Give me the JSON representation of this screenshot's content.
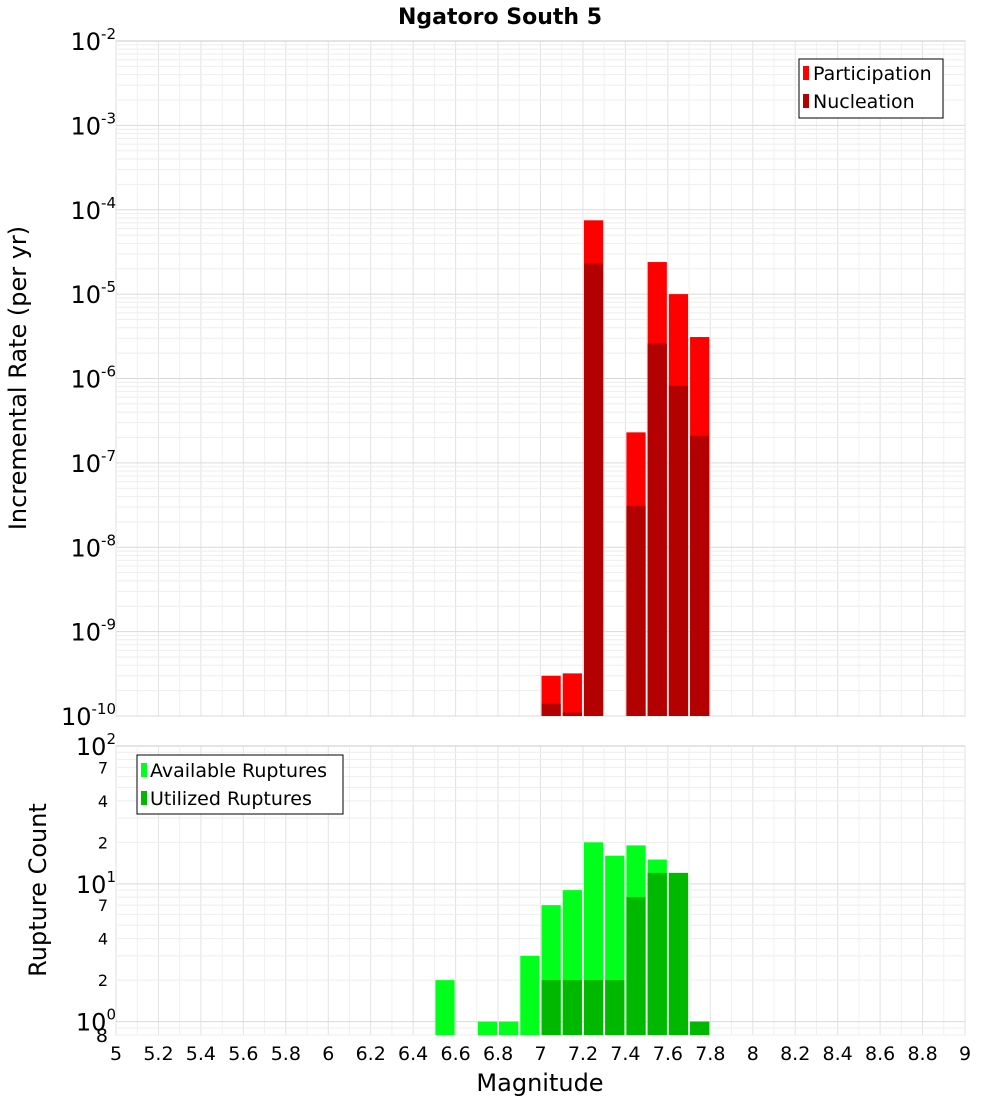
{
  "chart_data": [
    {
      "type": "bar",
      "title": "Ngatoro South 5",
      "ylabel": "Incremental Rate (per yr)",
      "xlabel": "",
      "yscale": "log",
      "ylim": [
        1e-10,
        0.01
      ],
      "xlim": [
        5,
        9
      ],
      "grid": true,
      "y_ticks": [
        {
          "base": "10",
          "exp": "-10"
        },
        {
          "base": "10",
          "exp": "-9"
        },
        {
          "base": "10",
          "exp": "-8"
        },
        {
          "base": "10",
          "exp": "-7"
        },
        {
          "base": "10",
          "exp": "-6"
        },
        {
          "base": "10",
          "exp": "-5"
        },
        {
          "base": "10",
          "exp": "-4"
        },
        {
          "base": "10",
          "exp": "-3"
        },
        {
          "base": "10",
          "exp": "-2"
        }
      ],
      "legend_position": "top-right",
      "x": [
        7.05,
        7.15,
        7.25,
        7.45,
        7.55,
        7.65,
        7.75
      ],
      "series": [
        {
          "name": "Participation",
          "color": "#ff0000",
          "values": [
            3e-10,
            3.2e-10,
            7.5e-05,
            2.3e-07,
            2.4e-05,
            1e-05,
            3.1e-06
          ]
        },
        {
          "name": "Nucleation",
          "color": "#b30000",
          "values": [
            1.4e-10,
            1.1e-10,
            2.3e-05,
            3.1e-08,
            2.6e-06,
            8.2e-07,
            2.1e-07
          ]
        }
      ]
    },
    {
      "type": "bar",
      "title": "",
      "ylabel": "Rupture Count",
      "xlabel": "Magnitude",
      "yscale": "log",
      "ylim": [
        0.8,
        100
      ],
      "xlim": [
        5,
        9
      ],
      "grid": true,
      "x_ticks": [
        "5",
        "5.2",
        "5.4",
        "5.6",
        "5.8",
        "6",
        "6.2",
        "6.4",
        "6.6",
        "6.8",
        "7",
        "7.2",
        "7.4",
        "7.6",
        "7.8",
        "8",
        "8.2",
        "8.4",
        "8.6",
        "8.8",
        "9"
      ],
      "y_major_ticks": [
        {
          "base": "10",
          "exp": "0"
        },
        {
          "base": "10",
          "exp": "1"
        },
        {
          "base": "10",
          "exp": "2"
        }
      ],
      "y_minor_labels": [
        "2",
        "4",
        "7",
        "2",
        "4",
        "7"
      ],
      "y_bottom_label": "8",
      "legend_position": "top-left",
      "x": [
        6.55,
        6.75,
        6.85,
        6.95,
        7.05,
        7.15,
        7.25,
        7.35,
        7.45,
        7.55,
        7.65,
        7.75
      ],
      "series": [
        {
          "name": "Available Ruptures",
          "color": "#00ff1a",
          "values": [
            2,
            1,
            1,
            3,
            7,
            9,
            20,
            16,
            19,
            15,
            12,
            1
          ]
        },
        {
          "name": "Utilized Ruptures",
          "color": "#00b800",
          "values": [
            0,
            0,
            0,
            0,
            2,
            2,
            2,
            2,
            8,
            12,
            12,
            1
          ]
        }
      ]
    }
  ]
}
